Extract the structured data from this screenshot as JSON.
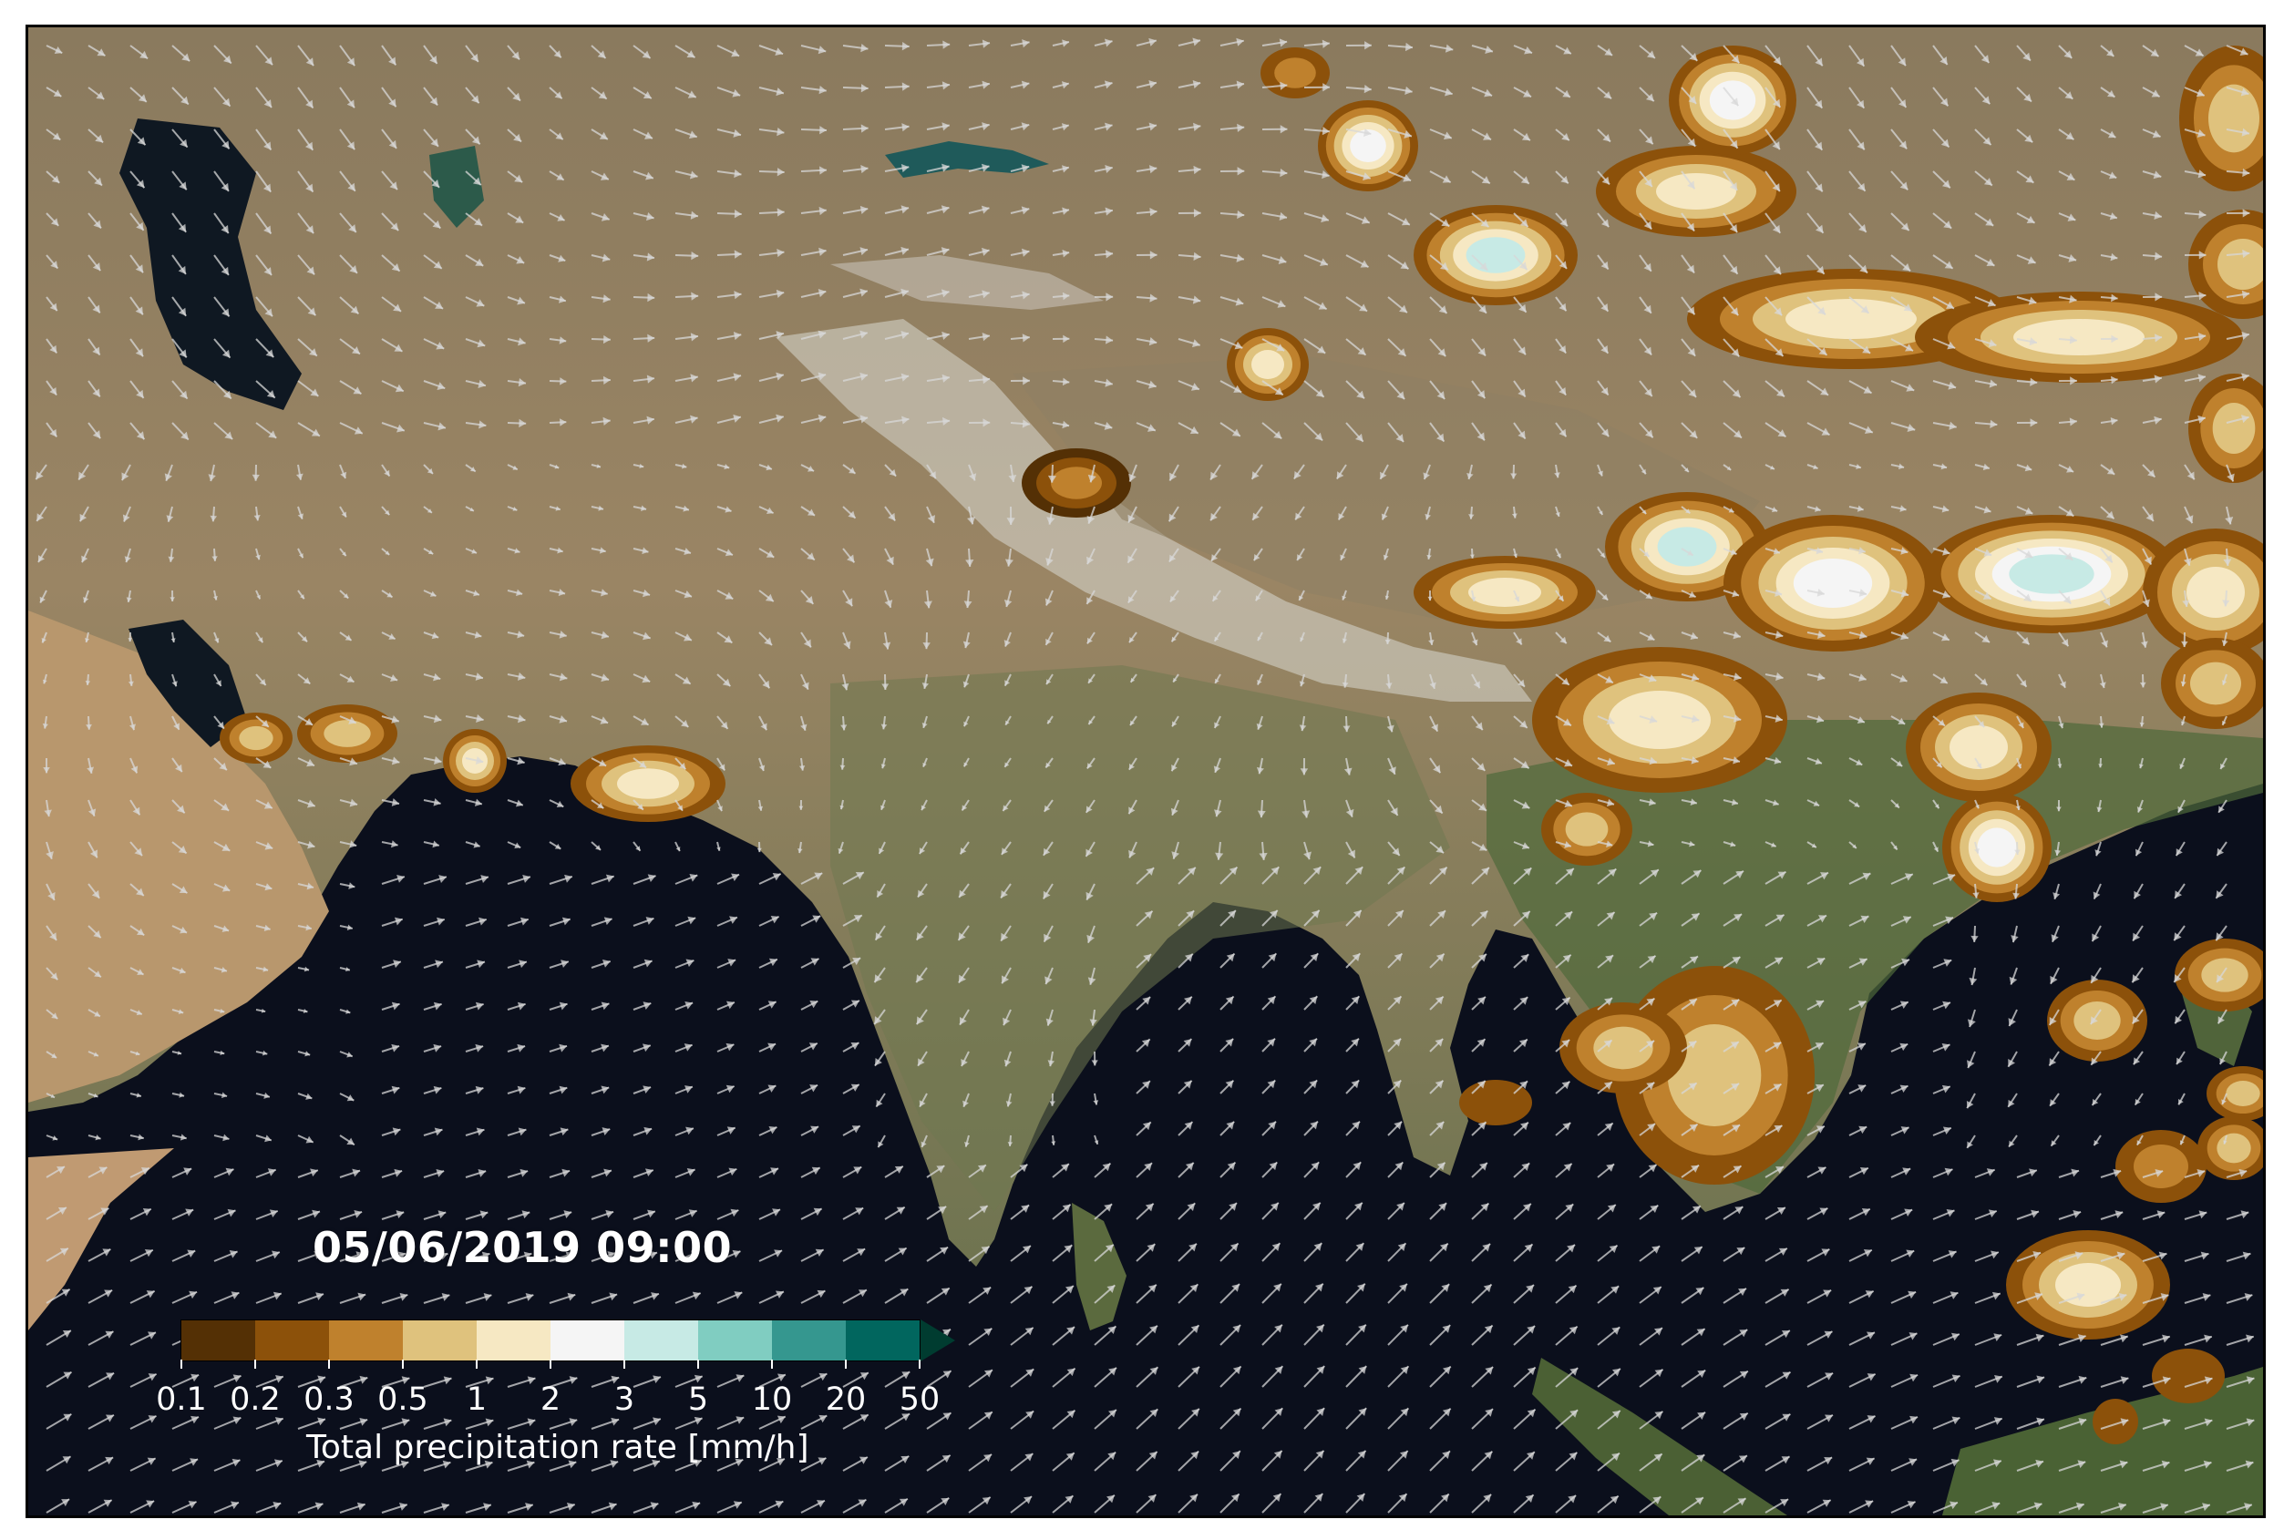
{
  "map": {
    "timestamp": "05/06/2019 09:00",
    "colorbar": {
      "title": "Total precipitation rate [mm/h]",
      "ticks": [
        "0.1",
        "0.2",
        "0.3",
        "0.5",
        "1",
        "2",
        "3",
        "5",
        "10",
        "20",
        "50"
      ],
      "colors": [
        "#543005",
        "#8c510a",
        "#bf812d",
        "#dfc27d",
        "#f6e8c3",
        "#f5f5f5",
        "#c7eae5",
        "#80cdc1",
        "#35978f",
        "#01665e"
      ],
      "extend_color": "#003c30",
      "extend": "max"
    },
    "layers": [
      "satellite-basemap",
      "precipitation-contours",
      "wind-vectors"
    ],
    "colors": {
      "ocean": "#0b0f1c",
      "land": "#a08a68",
      "arrow": "#d8d8d8",
      "frame": "#000000"
    }
  }
}
